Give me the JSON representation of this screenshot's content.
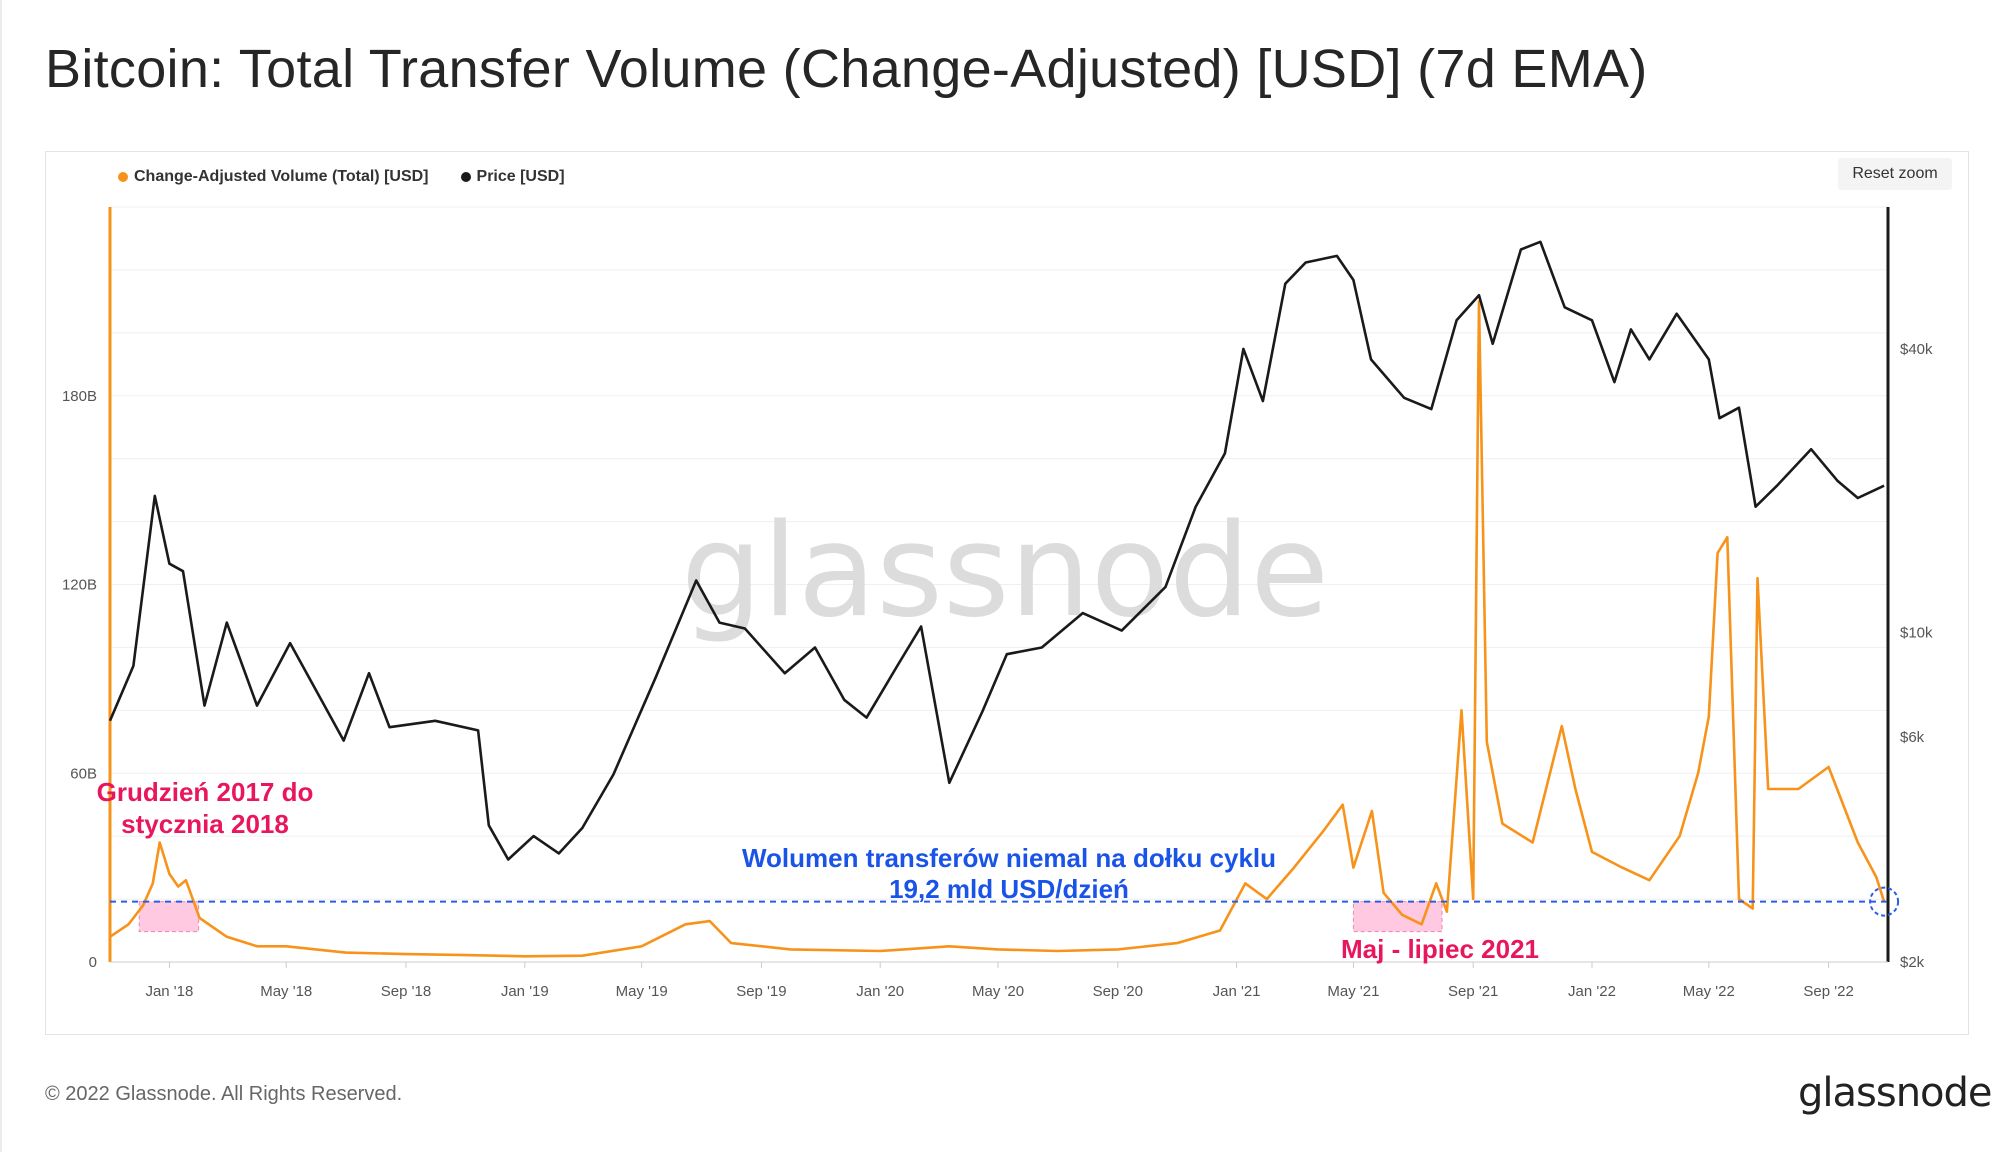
{
  "title": "Bitcoin: Total Transfer Volume (Change-Adjusted) [USD] (7d EMA)",
  "reset_zoom_label": "Reset zoom",
  "watermark": "glassnode",
  "footer": {
    "copyright": "© 2022 Glassnode. All Rights Reserved.",
    "logo": "glassnode"
  },
  "colors": {
    "volume": "#f7931a",
    "price": "#1a1a1a",
    "highlight": "#ff9ec8",
    "annotation_pink": "#e8175d",
    "annotation_blue": "#1a53e8",
    "dashed_line": "#2b5ce6"
  },
  "annotations": {
    "dec2017": {
      "line1": "Grudzień 2017 do",
      "line2": "stycznia 2018"
    },
    "bottom": {
      "line1": "Wolumen transferów niemal na dołku cyklu",
      "line2": "19,2 mld USD/dzień"
    },
    "may2021": {
      "text": "Maj - lipiec 2021"
    }
  },
  "chart_data": {
    "type": "line",
    "legend": [
      {
        "name": "Change-Adjusted Volume (Total) [USD]",
        "color": "#f7931a"
      },
      {
        "name": "Price [USD]",
        "color": "#1a1a1a"
      }
    ],
    "x_ticks": [
      "Jan '18",
      "May '18",
      "Sep '18",
      "Jan '19",
      "May '19",
      "Sep '19",
      "Jan '20",
      "May '20",
      "Sep '20",
      "Jan '21",
      "May '21",
      "Sep '21",
      "Jan '22",
      "May '22",
      "Sep '22"
    ],
    "x_range": [
      "2017-11-01",
      "2022-11-01"
    ],
    "y_left": {
      "ticks": [
        "0",
        "60B",
        "120B",
        "180B"
      ],
      "tick_values": [
        0,
        60,
        120,
        180
      ],
      "range": [
        0,
        240
      ],
      "unit": "B USD"
    },
    "y_right": {
      "scale": "log",
      "ticks": [
        "$2k",
        "$6k",
        "$10k",
        "$40k"
      ],
      "tick_values": [
        2000,
        6000,
        10000,
        40000
      ],
      "range": [
        2000,
        80000
      ]
    },
    "reference_line": {
      "value": 19.2,
      "unit": "B USD"
    },
    "highlight_ranges": [
      {
        "from": "2017-12-01",
        "to": "2018-01-31"
      },
      {
        "from": "2021-05-01",
        "to": "2021-07-31"
      }
    ],
    "series": [
      {
        "name": "Change-Adjusted Volume (Total) [USD]",
        "axis": "left",
        "points": [
          [
            "2017-11-01",
            8
          ],
          [
            "2017-11-20",
            12
          ],
          [
            "2017-12-05",
            18
          ],
          [
            "2017-12-15",
            25
          ],
          [
            "2017-12-22",
            38
          ],
          [
            "2018-01-01",
            28
          ],
          [
            "2018-01-10",
            24
          ],
          [
            "2018-01-18",
            26
          ],
          [
            "2018-02-01",
            14
          ],
          [
            "2018-03-01",
            8
          ],
          [
            "2018-04-01",
            5
          ],
          [
            "2018-05-01",
            5
          ],
          [
            "2018-07-01",
            3
          ],
          [
            "2018-09-01",
            2.5
          ],
          [
            "2018-11-01",
            2.2
          ],
          [
            "2019-01-01",
            1.8
          ],
          [
            "2019-03-01",
            2
          ],
          [
            "2019-05-01",
            5
          ],
          [
            "2019-06-15",
            12
          ],
          [
            "2019-07-10",
            13
          ],
          [
            "2019-08-01",
            6
          ],
          [
            "2019-10-01",
            4
          ],
          [
            "2020-01-01",
            3.5
          ],
          [
            "2020-03-12",
            5
          ],
          [
            "2020-05-01",
            4
          ],
          [
            "2020-07-01",
            3.5
          ],
          [
            "2020-09-01",
            4
          ],
          [
            "2020-11-01",
            6
          ],
          [
            "2020-12-15",
            10
          ],
          [
            "2021-01-10",
            25
          ],
          [
            "2021-02-01",
            20
          ],
          [
            "2021-03-01",
            30
          ],
          [
            "2021-04-01",
            42
          ],
          [
            "2021-04-20",
            50
          ],
          [
            "2021-05-01",
            30
          ],
          [
            "2021-05-20",
            48
          ],
          [
            "2021-06-01",
            22
          ],
          [
            "2021-06-20",
            15
          ],
          [
            "2021-07-10",
            12
          ],
          [
            "2021-07-25",
            25
          ],
          [
            "2021-08-05",
            16
          ],
          [
            "2021-08-20",
            80
          ],
          [
            "2021-09-01",
            20
          ],
          [
            "2021-09-07",
            210
          ],
          [
            "2021-09-15",
            70
          ],
          [
            "2021-10-01",
            44
          ],
          [
            "2021-11-01",
            38
          ],
          [
            "2021-12-01",
            75
          ],
          [
            "2021-12-15",
            55
          ],
          [
            "2022-01-01",
            35
          ],
          [
            "2022-02-01",
            30
          ],
          [
            "2022-03-01",
            26
          ],
          [
            "2022-04-01",
            40
          ],
          [
            "2022-04-20",
            60
          ],
          [
            "2022-05-01",
            78
          ],
          [
            "2022-05-10",
            130
          ],
          [
            "2022-05-20",
            135
          ],
          [
            "2022-06-01",
            20
          ],
          [
            "2022-06-15",
            17
          ],
          [
            "2022-06-20",
            122
          ],
          [
            "2022-07-01",
            55
          ],
          [
            "2022-08-01",
            55
          ],
          [
            "2022-09-01",
            62
          ],
          [
            "2022-10-01",
            38
          ],
          [
            "2022-10-20",
            27
          ],
          [
            "2022-10-28",
            19.2
          ]
        ]
      },
      {
        "name": "Price [USD]",
        "axis": "right",
        "points": [
          [
            "2017-11-01",
            6500
          ],
          [
            "2017-11-25",
            8500
          ],
          [
            "2017-12-17",
            19500
          ],
          [
            "2018-01-01",
            14000
          ],
          [
            "2018-01-15",
            13500
          ],
          [
            "2018-02-06",
            7000
          ],
          [
            "2018-03-01",
            10500
          ],
          [
            "2018-04-01",
            7000
          ],
          [
            "2018-05-05",
            9500
          ],
          [
            "2018-06-29",
            5900
          ],
          [
            "2018-07-25",
            8200
          ],
          [
            "2018-08-15",
            6300
          ],
          [
            "2018-10-01",
            6500
          ],
          [
            "2018-11-14",
            6200
          ],
          [
            "2018-11-25",
            3900
          ],
          [
            "2018-12-15",
            3300
          ],
          [
            "2019-01-10",
            3700
          ],
          [
            "2019-02-05",
            3400
          ],
          [
            "2019-03-01",
            3850
          ],
          [
            "2019-04-02",
            5000
          ],
          [
            "2019-05-15",
            8000
          ],
          [
            "2019-06-26",
            12900
          ],
          [
            "2019-07-20",
            10500
          ],
          [
            "2019-08-15",
            10200
          ],
          [
            "2019-09-25",
            8200
          ],
          [
            "2019-10-26",
            9300
          ],
          [
            "2019-11-25",
            7200
          ],
          [
            "2019-12-18",
            6600
          ],
          [
            "2020-01-20",
            8600
          ],
          [
            "2020-02-12",
            10300
          ],
          [
            "2020-03-12",
            4800
          ],
          [
            "2020-04-15",
            6800
          ],
          [
            "2020-05-10",
            9000
          ],
          [
            "2020-06-15",
            9300
          ],
          [
            "2020-07-27",
            11000
          ],
          [
            "2020-09-05",
            10100
          ],
          [
            "2020-10-20",
            12500
          ],
          [
            "2020-11-20",
            18500
          ],
          [
            "2020-12-20",
            24000
          ],
          [
            "2021-01-08",
            40000
          ],
          [
            "2021-01-28",
            31000
          ],
          [
            "2021-02-20",
            55000
          ],
          [
            "2021-03-13",
            61000
          ],
          [
            "2021-04-14",
            63000
          ],
          [
            "2021-05-01",
            56000
          ],
          [
            "2021-05-19",
            38000
          ],
          [
            "2021-06-22",
            31500
          ],
          [
            "2021-07-20",
            29800
          ],
          [
            "2021-08-15",
            46000
          ],
          [
            "2021-09-07",
            52000
          ],
          [
            "2021-09-21",
            41000
          ],
          [
            "2021-10-20",
            65000
          ],
          [
            "2021-11-09",
            67500
          ],
          [
            "2021-12-04",
            49000
          ],
          [
            "2022-01-01",
            46000
          ],
          [
            "2022-01-24",
            34000
          ],
          [
            "2022-02-10",
            44000
          ],
          [
            "2022-03-01",
            38000
          ],
          [
            "2022-03-29",
            47500
          ],
          [
            "2022-05-01",
            38000
          ],
          [
            "2022-05-12",
            28500
          ],
          [
            "2022-06-01",
            30000
          ],
          [
            "2022-06-18",
            18500
          ],
          [
            "2022-07-10",
            20500
          ],
          [
            "2022-08-14",
            24500
          ],
          [
            "2022-09-10",
            21000
          ],
          [
            "2022-10-01",
            19300
          ],
          [
            "2022-10-28",
            20500
          ]
        ]
      }
    ]
  }
}
